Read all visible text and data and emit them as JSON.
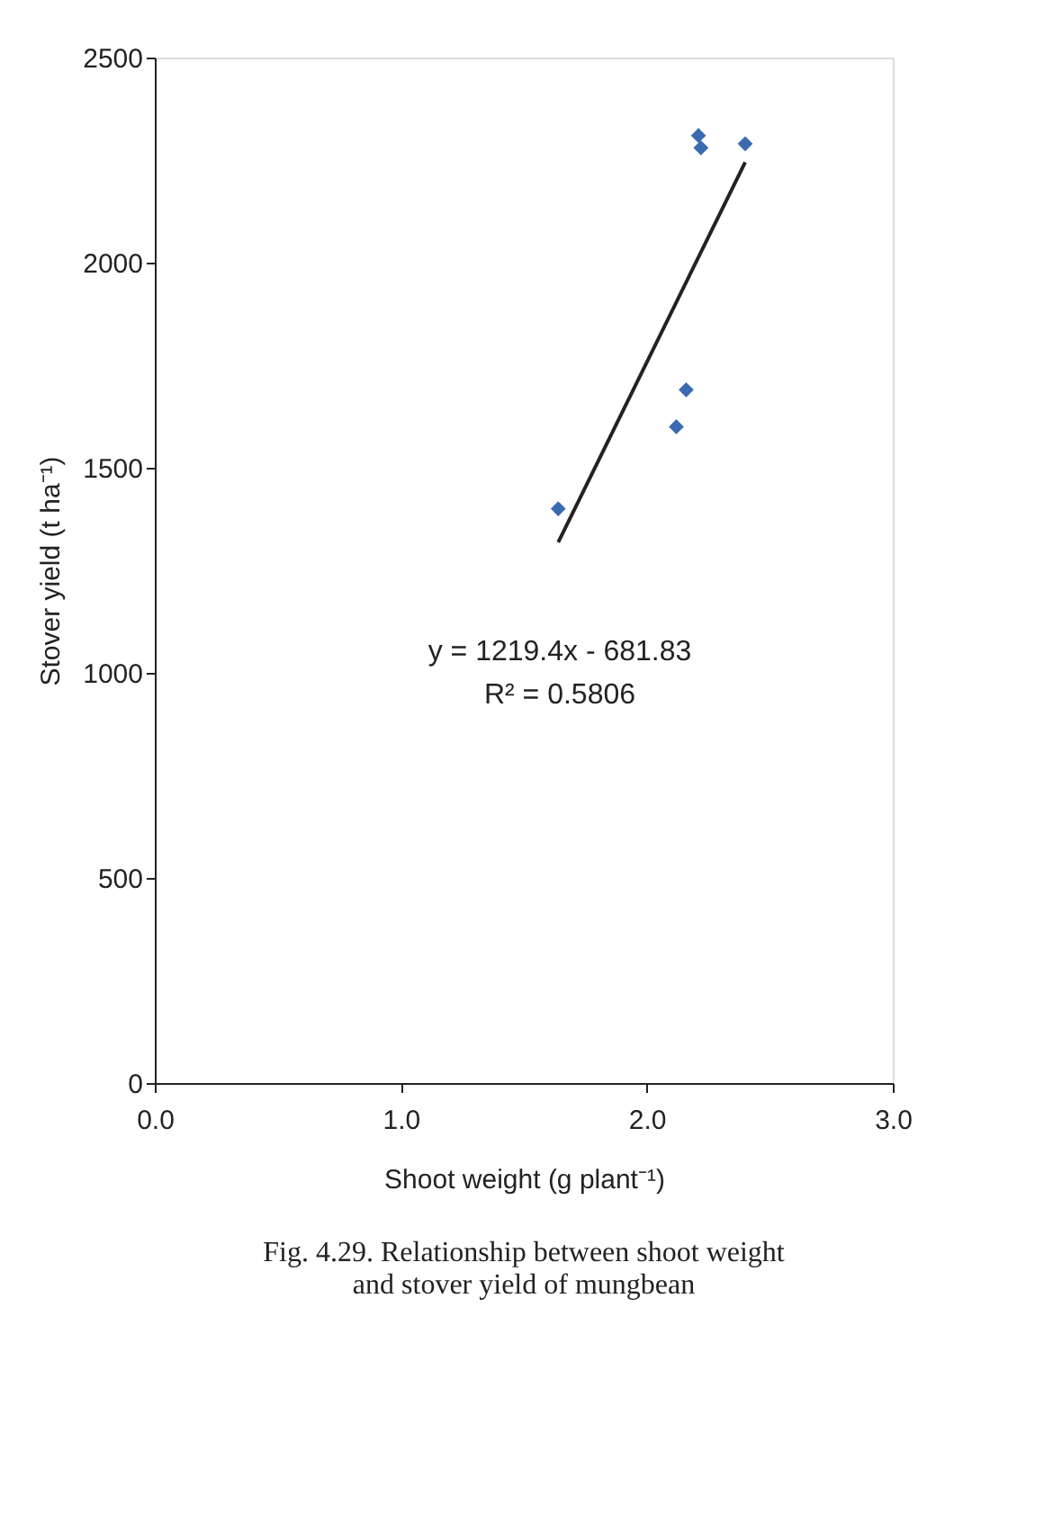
{
  "chart_data": {
    "type": "scatter",
    "xlabel": "Shoot weight (g plant⁻¹)",
    "ylabel": "Stover yield (t ha⁻¹)",
    "xlim": [
      0,
      3
    ],
    "xticks": [
      {
        "value": 0,
        "label": "0.0"
      },
      {
        "value": 1,
        "label": "1.0"
      },
      {
        "value": 2,
        "label": "2.0"
      },
      {
        "value": 3,
        "label": "3.0"
      }
    ],
    "ylim": [
      0,
      2500
    ],
    "yticks": [
      0,
      500,
      1000,
      1500,
      2000,
      2500
    ],
    "grid": false,
    "marker": "diamond",
    "series": [
      {
        "color": "#3a6ab0",
        "x": [
          1.64,
          2.12,
          2.16,
          2.21,
          2.22,
          2.4
        ],
        "values": [
          1400,
          1600,
          1690,
          2310,
          2280,
          2290
        ]
      },
      {
        "type": "line",
        "color": "#222222",
        "line_style": "solid",
        "marker": "none",
        "x": [
          1.64,
          2.4
        ],
        "values": [
          1318,
          2245
        ]
      }
    ],
    "annotations": [
      "y = 1219.4x - 681.83",
      "R² = 0.5806",
      "Fig. 4.29. Relationship between shoot weight",
      "and stover yield of  mungbean"
    ]
  }
}
